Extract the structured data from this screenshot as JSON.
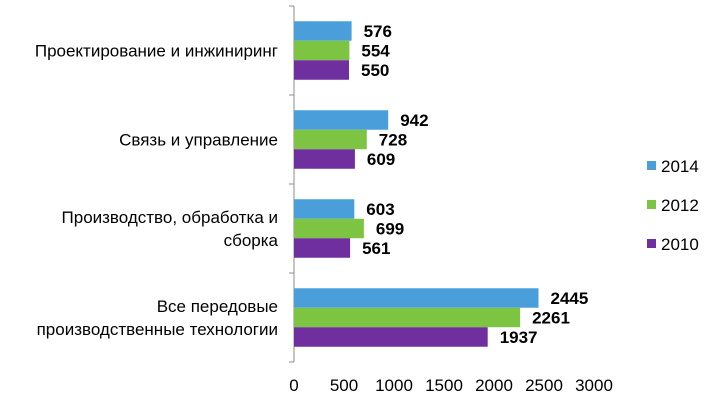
{
  "chart_data": {
    "type": "bar",
    "orientation": "horizontal",
    "categories": [
      "Проектирование и инжиниринг",
      "Связь и управление",
      "Производство, обработка и сборка",
      "Все передовые производственные технологии"
    ],
    "category_lines": [
      [
        "Проектирование и инжиниринг"
      ],
      [
        "Связь и управление"
      ],
      [
        "Производство, обработка и",
        "сборка"
      ],
      [
        "Все передовые",
        "производственные технологии"
      ]
    ],
    "series": [
      {
        "name": "2014",
        "color": "#4A9FDB",
        "values": [
          576,
          942,
          603,
          2445
        ]
      },
      {
        "name": "2012",
        "color": "#7DC443",
        "values": [
          554,
          728,
          699,
          2261
        ]
      },
      {
        "name": "2010",
        "color": "#6F2F9F",
        "values": [
          550,
          609,
          561,
          1937
        ]
      }
    ],
    "xlim": [
      0,
      3000
    ],
    "x_ticks": [
      0,
      500,
      1000,
      1500,
      2000,
      2500,
      3000
    ],
    "grid": false,
    "legend": "right",
    "title": "",
    "xlabel": "",
    "ylabel": ""
  }
}
